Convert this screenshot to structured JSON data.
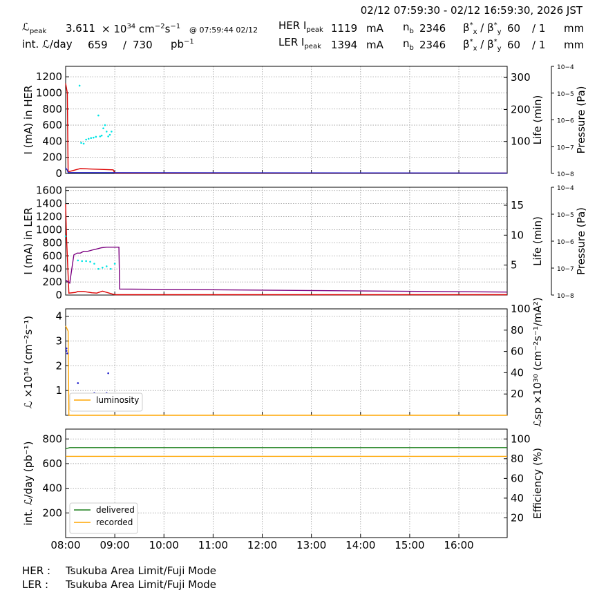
{
  "header": {
    "range": "02/12 07:59:30 - 02/12 16:59:30, 2026 JST",
    "lpeak_label": "peak",
    "lpeak_value": "3.611",
    "lpeak_exp": "34",
    "lpeak_unit_pre": "× 10",
    "lpeak_unit": "cm",
    "lpeak_unit_exp1": "−2",
    "lpeak_unit_s": "s",
    "lpeak_unit_exp2": "−1",
    "lpeak_time": "@ 07:59:44 02/12",
    "intl_label": "int.",
    "intl_suffix": "/day",
    "intl_value": "659",
    "intl_slash": "/",
    "intl_max": "730",
    "intl_unit": "pb",
    "intl_unit_exp": "−1",
    "her_label": "HER I",
    "her_sub": "peak",
    "her_value": "1119",
    "her_unit": "mA",
    "nb_label": "n",
    "nb_sub": "b",
    "her_nb": "2346",
    "ler_label": "LER I",
    "ler_sub": "peak",
    "ler_value": "1394",
    "ler_unit": "mA",
    "ler_nb": "2346",
    "beta_label": "β*x / β*y",
    "her_beta": "60",
    "ler_beta": "60",
    "beta_ratio": "/ 1",
    "beta_unit": "mm"
  },
  "footer": {
    "her_key": "HER :",
    "her_mode": "Tsukuba Area Limit/Fuji Mode",
    "ler_key": "LER :",
    "ler_mode": "Tsukuba Area Limit/Fuji Mode"
  },
  "colors": {
    "red": "#dd0000",
    "blue": "#2020cc",
    "cyan": "#00e5e5",
    "purple": "#7b0080",
    "orange": "#ffa500",
    "green": "#1a7f1a",
    "grid": "#9a9a9a"
  },
  "chart_data": [
    {
      "type": "line",
      "panel": "HER",
      "xlim": [
        "08:00",
        "16:59"
      ],
      "x_ticks": [
        "08:00",
        "09:00",
        "10:00",
        "11:00",
        "12:00",
        "13:00",
        "14:00",
        "15:00",
        "16:00"
      ],
      "ylabel": "I (mA) in HER",
      "ylim": [
        0,
        1330
      ],
      "yticks": [
        0,
        200,
        400,
        600,
        800,
        1000,
        1200
      ],
      "y2label": "Life (min)",
      "y2lim": [
        0,
        335
      ],
      "y2ticks": [
        100,
        200,
        300
      ],
      "y3label": "Pressure (Pa)",
      "y3ticks": [
        "10−8",
        "10−7",
        "10−6",
        "10−5",
        "10−4"
      ],
      "grid": true,
      "series": [
        {
          "role": "current",
          "color": "#dd0000",
          "x": [
            "08:00",
            "08:02",
            "08:03",
            "08:18",
            "08:58",
            "09:00",
            "16:59"
          ],
          "y": [
            1119,
            1000,
            20,
            60,
            45,
            5,
            5
          ]
        },
        {
          "role": "current-low",
          "color": "#2020cc",
          "x": [
            "08:00",
            "08:02",
            "08:03",
            "16:59"
          ],
          "y": [
            70,
            40,
            10,
            5
          ]
        },
        {
          "role": "lifetime",
          "color": "#00e5e5",
          "x": [
            "08:17",
            "08:19",
            "08:22",
            "08:25",
            "08:28",
            "08:31",
            "08:34",
            "08:37",
            "08:40",
            "08:42",
            "08:44",
            "08:46",
            "08:48",
            "08:50",
            "08:52",
            "08:54",
            "08:56"
          ],
          "y": [
            1090,
            380,
            370,
            420,
            430,
            440,
            445,
            455,
            720,
            460,
            470,
            560,
            600,
            520,
            460,
            480,
            520
          ]
        }
      ]
    },
    {
      "type": "line",
      "panel": "LER",
      "xlim": [
        "08:00",
        "16:59"
      ],
      "ylabel": "I (mA) in LER",
      "ylim": [
        0,
        1650
      ],
      "yticks": [
        0,
        200,
        400,
        600,
        800,
        1000,
        1200,
        1400,
        1600
      ],
      "y2label": "Life (min)",
      "y2lim": [
        0,
        18
      ],
      "y2ticks": [
        5,
        10,
        15
      ],
      "y3label": "Pressure (Pa)",
      "y3ticks": [
        "10−8",
        "10−7",
        "10−6",
        "10−5",
        "10−4"
      ],
      "grid": true,
      "series": [
        {
          "role": "current",
          "color": "#dd0000",
          "x": [
            "08:00",
            "08:01",
            "08:03",
            "08:04",
            "08:12",
            "08:15",
            "08:22",
            "08:32",
            "08:38",
            "08:45",
            "09:00",
            "16:59"
          ],
          "y": [
            1394,
            900,
            300,
            30,
            40,
            55,
            55,
            35,
            30,
            60,
            5,
            5
          ]
        },
        {
          "role": "life",
          "color": "#7b0080",
          "x": [
            "08:00",
            "08:05",
            "08:10",
            "08:14",
            "08:18",
            "08:22",
            "08:27",
            "08:32",
            "08:38",
            "08:44",
            "08:50",
            "08:55",
            "09:05",
            "09:06",
            "16:59"
          ],
          "y": [
            2.5,
            2.0,
            6.7,
            7.0,
            7.0,
            7.3,
            7.3,
            7.5,
            7.7,
            7.9,
            8.0,
            8.0,
            8.0,
            1.0,
            0.5
          ]
        },
        {
          "role": "lifetime-dots",
          "color": "#00e5e5",
          "x": [
            "08:00",
            "08:15",
            "08:20",
            "08:25",
            "08:30",
            "08:35",
            "08:40",
            "08:45",
            "08:50",
            "08:55",
            "09:00"
          ],
          "y": [
            900,
            530,
            520,
            520,
            510,
            480,
            400,
            420,
            440,
            400,
            480
          ]
        }
      ]
    },
    {
      "type": "line",
      "panel": "Luminosity",
      "xlim": [
        "08:00",
        "16:59"
      ],
      "ylabel": "ℒ ×10³⁴ (cm⁻²s⁻¹)",
      "ylim": [
        0,
        4.3
      ],
      "yticks": [
        1,
        2,
        3,
        4
      ],
      "y2label": "ℒsp ×10³⁰ (cm⁻²s⁻¹/mA²)",
      "y2lim": [
        0,
        100
      ],
      "y2ticks": [
        20,
        40,
        60,
        80,
        100
      ],
      "legend": [
        "luminosity"
      ],
      "legend_position": "lower-left",
      "grid": true,
      "series": [
        {
          "name": "luminosity",
          "color": "#ffa500",
          "x": [
            "08:00",
            "08:03",
            "08:04",
            "16:59"
          ],
          "y": [
            3.611,
            3.4,
            0,
            0
          ]
        },
        {
          "role": "specific-dots",
          "color": "#2020cc",
          "x": [
            "08:01",
            "08:01",
            "08:02",
            "08:15",
            "08:17",
            "08:20",
            "08:25",
            "08:30",
            "08:35",
            "08:40",
            "08:45",
            "08:50",
            "08:52"
          ],
          "y": [
            2.6,
            2.7,
            2.5,
            1.3,
            0.5,
            0.8,
            0.3,
            0.6,
            0.9,
            0.4,
            0.2,
            0.9,
            1.7
          ]
        }
      ]
    },
    {
      "type": "line",
      "panel": "Integrated",
      "xlim": [
        "08:00",
        "16:59"
      ],
      "ylabel": "int. ℒ/day (pb⁻¹)",
      "ylim": [
        0,
        880
      ],
      "yticks": [
        200,
        400,
        600,
        800
      ],
      "y2label": "Efficiency (%)",
      "y2lim": [
        0,
        110
      ],
      "y2ticks": [
        20,
        40,
        60,
        80,
        100
      ],
      "legend": [
        "delivered",
        "recorded"
      ],
      "legend_position": "lower-left",
      "grid": true,
      "series": [
        {
          "name": "delivered",
          "color": "#1a7f1a",
          "x": [
            "08:00",
            "08:05",
            "16:59"
          ],
          "y": [
            720,
            730,
            730
          ]
        },
        {
          "name": "recorded",
          "color": "#ffa500",
          "x": [
            "08:00",
            "16:59"
          ],
          "y": [
            659,
            659
          ]
        }
      ]
    }
  ]
}
